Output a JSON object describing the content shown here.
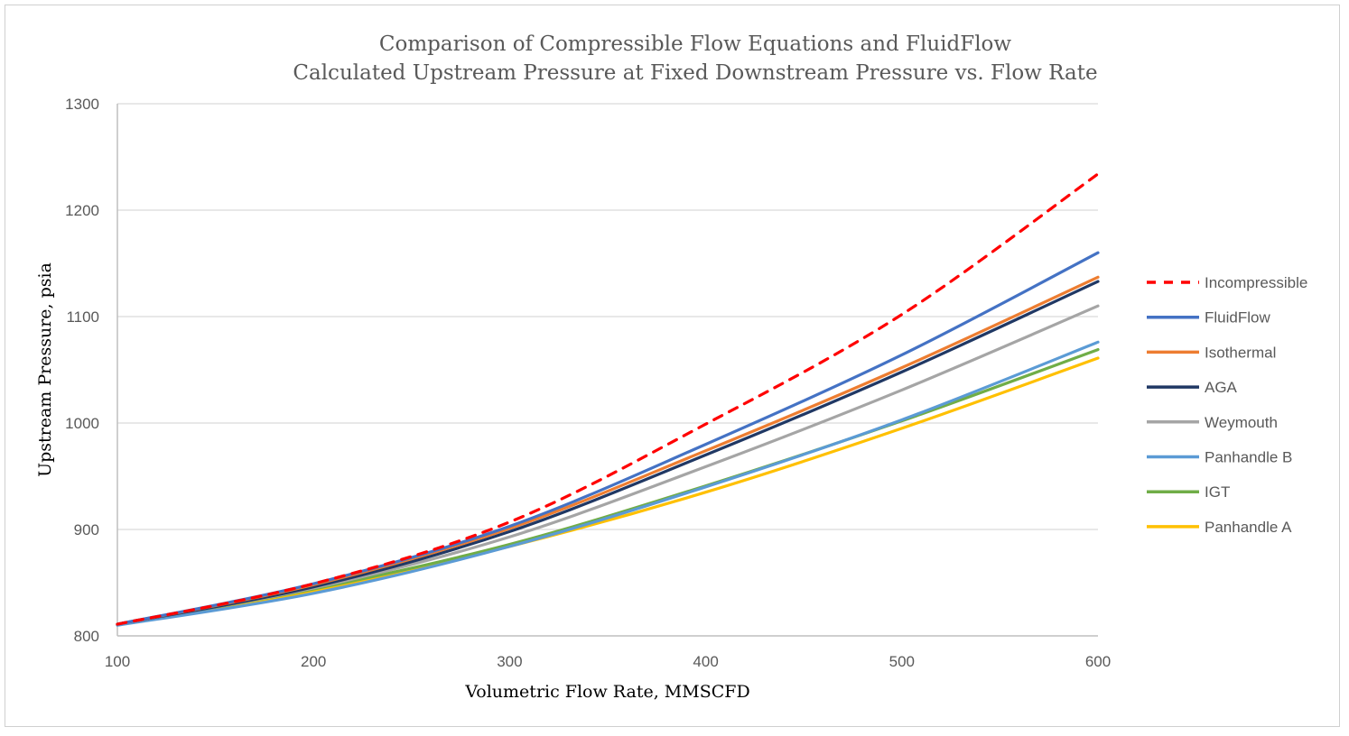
{
  "chart_data": {
    "type": "line",
    "title": "Comparison of Compressible Flow Equations and FluidFlow",
    "subtitle": "Calculated Upstream Pressure at Fixed Downstream Pressure vs. Flow Rate",
    "xlabel": "Volumetric Flow Rate, MMSCFD",
    "ylabel": "Upstream Pressure, psia",
    "xlim": [
      100,
      600
    ],
    "ylim": [
      800,
      1300
    ],
    "xticks": [
      100,
      200,
      300,
      400,
      500,
      600
    ],
    "yticks": [
      800,
      900,
      1000,
      1100,
      1200,
      1300
    ],
    "grid": "horizontal",
    "legend_position": "right",
    "x": [
      100,
      200,
      300,
      400,
      500,
      600
    ],
    "series": [
      {
        "name": "Incompressible",
        "color": "#ff0000",
        "dashed": true,
        "values": [
          811,
          849,
          907,
          999,
          1102,
          1234
        ]
      },
      {
        "name": "FluidFlow",
        "color": "#4472c4",
        "values": [
          811,
          849,
          903,
          980,
          1064,
          1160
        ]
      },
      {
        "name": "Isothermal",
        "color": "#ed7d31",
        "values": [
          811,
          848,
          901,
          974,
          1052,
          1137
        ]
      },
      {
        "name": "AGA",
        "color": "#203864",
        "values": [
          811,
          846,
          898,
          970,
          1048,
          1133
        ]
      },
      {
        "name": "Weymouth",
        "color": "#a5a5a5",
        "values": [
          811,
          845,
          893,
          959,
          1031,
          1110
        ]
      },
      {
        "name": "Panhandle B",
        "color": "#5b9bd5",
        "values": [
          810,
          840,
          884,
          940,
          1003,
          1076
        ]
      },
      {
        "name": "IGT",
        "color": "#70ad47",
        "values": [
          811,
          844,
          886,
          941,
          1002,
          1069
        ]
      },
      {
        "name": "Panhandle A",
        "color": "#ffc000",
        "values": [
          811,
          842,
          884,
          935,
          995,
          1061
        ]
      }
    ]
  }
}
